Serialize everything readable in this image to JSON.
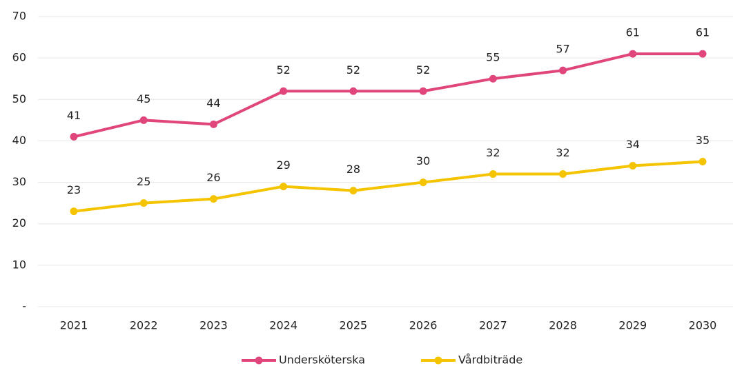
{
  "chart_data": {
    "type": "line",
    "categories": [
      "2021",
      "2022",
      "2023",
      "2024",
      "2025",
      "2026",
      "2027",
      "2028",
      "2029",
      "2030"
    ],
    "series": [
      {
        "name": "Undersköterska",
        "color": "#e0457b",
        "values": [
          41,
          45,
          44,
          52,
          52,
          52,
          55,
          57,
          61,
          61
        ]
      },
      {
        "name": "Vårdbiträde",
        "color": "#f5c400",
        "values": [
          23,
          25,
          26,
          29,
          28,
          30,
          32,
          32,
          34,
          35
        ]
      }
    ],
    "ylim": [
      0,
      70
    ],
    "yticks": [
      {
        "value": 0,
        "label": "-"
      },
      10,
      20,
      30,
      40,
      50,
      60,
      70
    ],
    "grid": true,
    "legend": "bottom"
  }
}
